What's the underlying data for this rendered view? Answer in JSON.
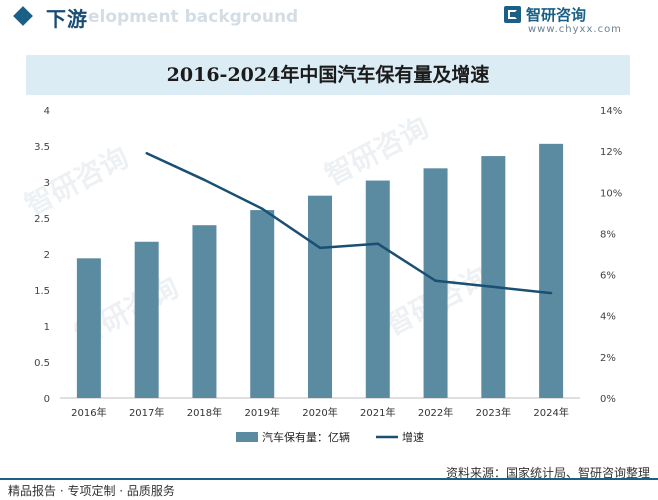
{
  "header": {
    "section_title": "下游",
    "section_subtitle": "elopment background",
    "brand_name": "智研咨询",
    "brand_url": "www.chyxx.com"
  },
  "chart_data": {
    "type": "bar",
    "title": "2016-2024年中国汽车保有量及增速",
    "categories": [
      "2016年",
      "2017年",
      "2018年",
      "2019年",
      "2020年",
      "2021年",
      "2022年",
      "2023年",
      "2024年"
    ],
    "series": [
      {
        "name": "汽车保有量：亿辆",
        "type": "bar",
        "axis": "left",
        "color": "#5b8ba1",
        "values": [
          1.94,
          2.17,
          2.4,
          2.61,
          2.81,
          3.02,
          3.19,
          3.36,
          3.53
        ]
      },
      {
        "name": "增速",
        "type": "line",
        "axis": "right",
        "color": "#1a4f74",
        "values": [
          null,
          11.9,
          10.6,
          9.2,
          7.3,
          7.5,
          5.7,
          5.4,
          5.1
        ]
      }
    ],
    "yaxis_left": {
      "min": 0,
      "max": 4,
      "ticks": [
        "0",
        "0.5",
        "1",
        "1.5",
        "2",
        "2.5",
        "3",
        "3.5",
        "4"
      ]
    },
    "yaxis_right": {
      "min": 0,
      "max": 14,
      "ticks": [
        "0%",
        "2%",
        "4%",
        "6%",
        "8%",
        "10%",
        "12%",
        "14%"
      ]
    },
    "grid": false,
    "legend_position": "bottom"
  },
  "footer": {
    "left": "精品报告 · 专项定制 · 品质服务",
    "source": "资料来源：国家统计局、智研咨询整理"
  }
}
